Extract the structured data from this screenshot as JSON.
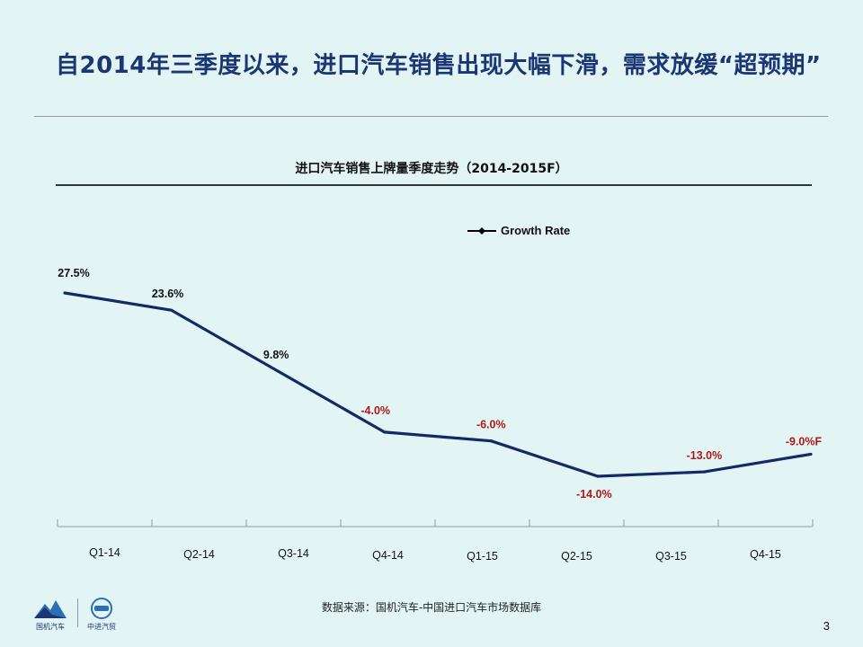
{
  "slide": {
    "title": "自2014年三季度以来，进口汽车销售出现大幅下滑，需求放缓“超预期”",
    "source": "数据来源：国机汽车-中国进口汽车市场数据库",
    "page_number": "3"
  },
  "logos": {
    "left_label": "国机汽车",
    "right_label": "中进汽贸",
    "left_icon": "mountain-logo-icon",
    "right_icon": "vehicle-logo-icon"
  },
  "colors": {
    "background": "#e3f4f4",
    "title": "#1a3773",
    "line": "#142a66",
    "positive_label": "#111111",
    "negative_label": "#b01818"
  },
  "chart_data": {
    "type": "line",
    "title": "进口汽车销售上牌量季度走势（2014-2015F）",
    "categories": [
      "Q1-14",
      "Q2-14",
      "Q3-14",
      "Q4-14",
      "Q1-15",
      "Q2-15",
      "Q3-15",
      "Q4-15"
    ],
    "series": [
      {
        "name": "Growth Rate",
        "values": [
          27.5,
          23.6,
          9.8,
          -4.0,
          -6.0,
          -14.0,
          -13.0,
          -9.0
        ],
        "labels": [
          "27.5%",
          "23.6%",
          "9.8%",
          "-4.0%",
          "-6.0%",
          "-14.0%",
          "-13.0%",
          "-9.0%F"
        ]
      }
    ],
    "legend": "top-right",
    "grid": false,
    "ylim": [
      -24,
      28
    ]
  }
}
